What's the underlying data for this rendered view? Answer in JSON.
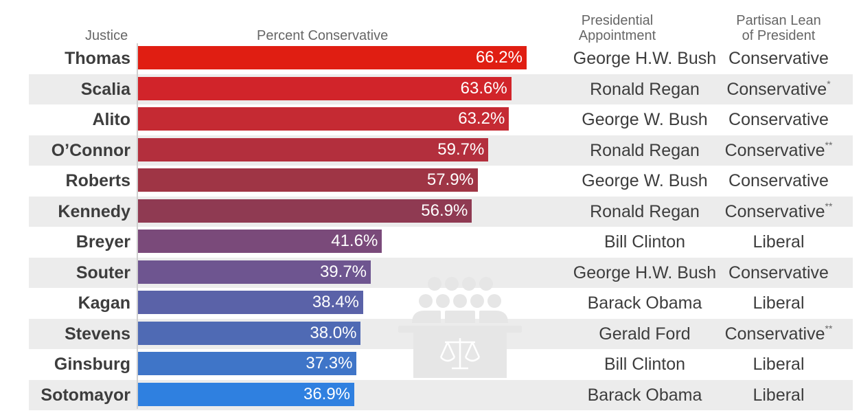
{
  "headers": {
    "justice": "Justice",
    "percent": "Percent Conservative",
    "appointment_line1": "Presidential",
    "appointment_line2": "Appointment",
    "lean_line1": "Partisan Lean",
    "lean_line2": "of President"
  },
  "chart_data": {
    "type": "bar",
    "orientation": "horizontal",
    "xlim": [
      0,
      66.2
    ],
    "categories": [
      "Thomas",
      "Scalia",
      "Alito",
      "O’Connor",
      "Roberts",
      "Kennedy",
      "Breyer",
      "Souter",
      "Kagan",
      "Stevens",
      "Ginsburg",
      "Sotomayor"
    ],
    "values": [
      66.2,
      63.6,
      63.2,
      59.7,
      57.9,
      56.9,
      41.6,
      39.7,
      38.4,
      38.0,
      37.3,
      36.9
    ],
    "value_labels": [
      "66.2%",
      "63.6%",
      "63.2%",
      "59.7%",
      "57.9%",
      "56.9%",
      "41.6%",
      "39.7%",
      "38.4%",
      "38.0%",
      "37.3%",
      "36.9%"
    ],
    "bar_colors": [
      "#e01e12",
      "#d1242a",
      "#c52a33",
      "#b32f3d",
      "#9f3545",
      "#8f3a52",
      "#7a4a7a",
      "#6e5590",
      "#5a62a8",
      "#4f6ab4",
      "#3f75c8",
      "#2f80e0"
    ],
    "grid": false
  },
  "rows": [
    {
      "appointment": "George H.W. Bush",
      "lean": "Conservative",
      "mark": ""
    },
    {
      "appointment": "Ronald Regan",
      "lean": "Conservative",
      "mark": "*"
    },
    {
      "appointment": "George W. Bush",
      "lean": "Conservative",
      "mark": ""
    },
    {
      "appointment": "Ronald Regan",
      "lean": "Conservative",
      "mark": "**"
    },
    {
      "appointment": "George W. Bush",
      "lean": "Conservative",
      "mark": ""
    },
    {
      "appointment": "Ronald Regan",
      "lean": "Conservative",
      "mark": "**"
    },
    {
      "appointment": "Bill Clinton",
      "lean": "Liberal",
      "mark": ""
    },
    {
      "appointment": "George H.W. Bush",
      "lean": "Conservative",
      "mark": ""
    },
    {
      "appointment": "Barack Obama",
      "lean": "Liberal",
      "mark": ""
    },
    {
      "appointment": "Gerald Ford",
      "lean": "Conservative",
      "mark": "**"
    },
    {
      "appointment": "Bill Clinton",
      "lean": "Liberal",
      "mark": ""
    },
    {
      "appointment": "Barack Obama",
      "lean": "Liberal",
      "mark": ""
    }
  ],
  "icons": {
    "watermark": "supreme-court-justices-icon"
  }
}
